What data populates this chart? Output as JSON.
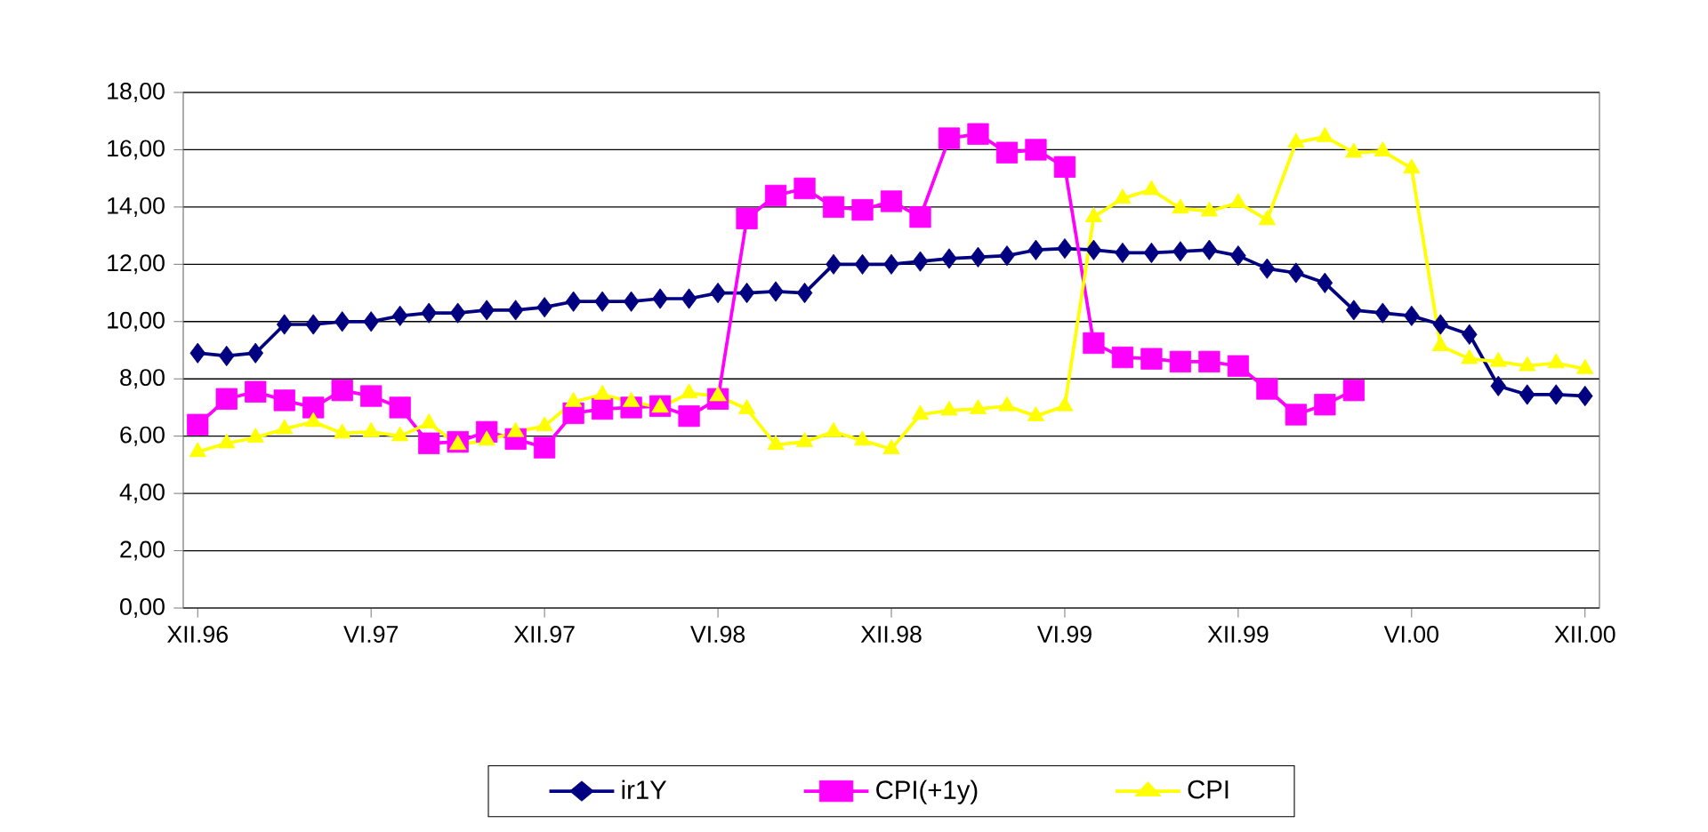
{
  "chart_data": {
    "type": "line",
    "categories": [
      "XII.96",
      null,
      null,
      null,
      null,
      null,
      "VI.97",
      null,
      null,
      null,
      null,
      null,
      "XII.97",
      null,
      null,
      null,
      null,
      null,
      "VI.98",
      null,
      null,
      null,
      null,
      null,
      "XII.98",
      null,
      null,
      null,
      null,
      null,
      "VI.99",
      null,
      null,
      null,
      null,
      null,
      "XII.99",
      null,
      null,
      null,
      null,
      null,
      "VI.00",
      null,
      null,
      null,
      null,
      null,
      "XII.00"
    ],
    "series": [
      {
        "name": "ir1Y",
        "color": "#000080",
        "marker": "diamond",
        "values": [
          8.9,
          8.8,
          8.9,
          9.9,
          9.9,
          10.0,
          10.0,
          10.2,
          10.3,
          10.3,
          10.4,
          10.4,
          10.5,
          10.7,
          10.7,
          10.7,
          10.8,
          10.8,
          11.0,
          11.0,
          11.05,
          11.0,
          12.0,
          12.0,
          12.0,
          12.1,
          12.2,
          12.25,
          12.3,
          12.5,
          12.55,
          12.5,
          12.4,
          12.4,
          12.45,
          12.5,
          12.3,
          11.85,
          11.7,
          11.35,
          10.4,
          10.3,
          10.2,
          9.9,
          9.55,
          7.75,
          7.45,
          7.45,
          7.4
        ]
      },
      {
        "name": "CPI(+1y)",
        "color": "#ff00ff",
        "marker": "square",
        "values": [
          6.4,
          7.3,
          7.55,
          7.25,
          7.0,
          7.6,
          7.4,
          7.0,
          5.75,
          5.8,
          6.15,
          5.9,
          5.6,
          6.8,
          6.95,
          7.0,
          7.05,
          6.7,
          7.3,
          13.6,
          14.4,
          14.65,
          14.0,
          13.9,
          14.2,
          13.65,
          16.4,
          16.55,
          15.9,
          16.0,
          15.4,
          9.25,
          8.75,
          8.7,
          8.6,
          8.6,
          8.45,
          7.65,
          6.75,
          7.1,
          7.6,
          null,
          null,
          null,
          null,
          null,
          null,
          null,
          null
        ]
      },
      {
        "name": "CPI",
        "color": "#ffff00",
        "marker": "triangle",
        "values": [
          5.45,
          5.75,
          5.95,
          6.25,
          6.5,
          6.1,
          6.15,
          6.0,
          6.45,
          5.7,
          5.85,
          6.15,
          6.35,
          7.2,
          7.45,
          7.2,
          7.0,
          7.5,
          7.4,
          6.95,
          5.7,
          5.8,
          6.15,
          5.85,
          5.55,
          6.75,
          6.9,
          6.95,
          7.05,
          6.7,
          7.05,
          13.65,
          14.3,
          14.6,
          13.95,
          13.85,
          14.15,
          13.55,
          16.25,
          16.45,
          15.9,
          15.95,
          15.35,
          9.15,
          8.7,
          8.6,
          8.45,
          8.55,
          8.35
        ]
      }
    ],
    "ylim": [
      0,
      18
    ],
    "yticks": [
      {
        "value": 0,
        "label": "0,00"
      },
      {
        "value": 2,
        "label": "2,00"
      },
      {
        "value": 4,
        "label": "4,00"
      },
      {
        "value": 6,
        "label": "6,00"
      },
      {
        "value": 8,
        "label": "8,00"
      },
      {
        "value": 10,
        "label": "10,00"
      },
      {
        "value": 12,
        "label": "12,00"
      },
      {
        "value": 14,
        "label": "14,00"
      },
      {
        "value": 16,
        "label": "16,00"
      },
      {
        "value": 18,
        "label": "18,00"
      }
    ],
    "grid": "y",
    "legend": "bottom"
  }
}
